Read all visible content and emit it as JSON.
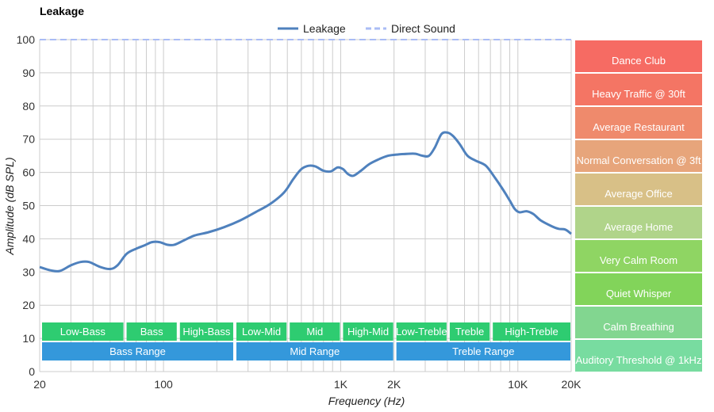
{
  "chart_data": {
    "type": "line",
    "title": "Leakage",
    "xlabel": "Frequency (Hz)",
    "ylabel": "Amplitude (dB SPL)",
    "xscale": "log",
    "xlim": [
      20,
      20000
    ],
    "ylim": [
      0,
      100
    ],
    "grid": true,
    "legend_position": "top-center",
    "x_ticks": [
      {
        "value": 20,
        "label": "20"
      },
      {
        "value": 100,
        "label": "100"
      },
      {
        "value": 1000,
        "label": "1K"
      },
      {
        "value": 2000,
        "label": "2K"
      },
      {
        "value": 10000,
        "label": "10K"
      },
      {
        "value": 20000,
        "label": "20K"
      }
    ],
    "y_ticks": [
      0,
      10,
      20,
      30,
      40,
      50,
      60,
      70,
      80,
      90,
      100
    ],
    "series": [
      {
        "name": "Leakage",
        "color": "#4f81bd",
        "style": "solid",
        "points": [
          [
            20,
            31.5
          ],
          [
            23,
            30.5
          ],
          [
            26,
            30.3
          ],
          [
            30,
            32.0
          ],
          [
            34,
            33.0
          ],
          [
            38,
            33.0
          ],
          [
            44,
            31.5
          ],
          [
            50,
            30.9
          ],
          [
            55,
            32.0
          ],
          [
            62,
            35.5
          ],
          [
            70,
            37.0
          ],
          [
            78,
            38.0
          ],
          [
            86,
            39.0
          ],
          [
            95,
            39.0
          ],
          [
            105,
            38.2
          ],
          [
            115,
            38.2
          ],
          [
            130,
            39.5
          ],
          [
            150,
            41.0
          ],
          [
            180,
            42.0
          ],
          [
            220,
            43.5
          ],
          [
            270,
            45.5
          ],
          [
            330,
            48.0
          ],
          [
            400,
            50.5
          ],
          [
            480,
            54.0
          ],
          [
            540,
            58.0
          ],
          [
            600,
            61.0
          ],
          [
            660,
            62.0
          ],
          [
            720,
            61.8
          ],
          [
            800,
            60.5
          ],
          [
            880,
            60.3
          ],
          [
            960,
            61.5
          ],
          [
            1030,
            61.0
          ],
          [
            1100,
            59.5
          ],
          [
            1180,
            59.0
          ],
          [
            1300,
            60.5
          ],
          [
            1450,
            62.5
          ],
          [
            1650,
            64.0
          ],
          [
            1850,
            65.0
          ],
          [
            2100,
            65.4
          ],
          [
            2400,
            65.6
          ],
          [
            2650,
            65.6
          ],
          [
            2900,
            65.0
          ],
          [
            3150,
            65.0
          ],
          [
            3400,
            67.5
          ],
          [
            3700,
            71.5
          ],
          [
            4000,
            72.0
          ],
          [
            4300,
            71.0
          ],
          [
            4700,
            68.5
          ],
          [
            5200,
            65.0
          ],
          [
            5800,
            63.5
          ],
          [
            6600,
            62.0
          ],
          [
            7400,
            58.5
          ],
          [
            8200,
            55.0
          ],
          [
            9000,
            51.5
          ],
          [
            9600,
            49.0
          ],
          [
            10200,
            48.0
          ],
          [
            11200,
            48.3
          ],
          [
            12200,
            47.5
          ],
          [
            13500,
            45.5
          ],
          [
            15500,
            43.8
          ],
          [
            17000,
            43.0
          ],
          [
            18500,
            42.8
          ],
          [
            20000,
            41.5
          ]
        ]
      },
      {
        "name": "Direct Sound",
        "color": "#aabcf5",
        "style": "dashed",
        "points": [
          [
            20,
            100
          ],
          [
            20000,
            100
          ]
        ]
      }
    ],
    "frequency_bands": {
      "narrow": [
        {
          "label": "Low-Bass",
          "from": 20,
          "to": 60,
          "color": "#2ecc71"
        },
        {
          "label": "Bass",
          "from": 60,
          "to": 120,
          "color": "#2ecc71"
        },
        {
          "label": "High-Bass",
          "from": 120,
          "to": 250,
          "color": "#2ecc71"
        },
        {
          "label": "Low-Mid",
          "from": 250,
          "to": 500,
          "color": "#2ecc71"
        },
        {
          "label": "Mid",
          "from": 500,
          "to": 1000,
          "color": "#2ecc71"
        },
        {
          "label": "High-Mid",
          "from": 1000,
          "to": 2000,
          "color": "#2ecc71"
        },
        {
          "label": "Low-Treble",
          "from": 2000,
          "to": 4000,
          "color": "#2ecc71"
        },
        {
          "label": "Treble",
          "from": 4000,
          "to": 7000,
          "color": "#2ecc71"
        },
        {
          "label": "High-Treble",
          "from": 7000,
          "to": 20000,
          "color": "#2ecc71"
        }
      ],
      "wide": [
        {
          "label": "Bass Range",
          "from": 20,
          "to": 250,
          "color": "#3498db"
        },
        {
          "label": "Mid Range",
          "from": 250,
          "to": 2000,
          "color": "#3498db"
        },
        {
          "label": "Treble Range",
          "from": 2000,
          "to": 20000,
          "color": "#3498db"
        }
      ]
    },
    "reference_levels": [
      {
        "label": "Dance Club",
        "color": "#f66b63"
      },
      {
        "label": "Heavy Traffic @ 30ft",
        "color": "#f47564"
      },
      {
        "label": "Average Restaurant",
        "color": "#ef8a6c"
      },
      {
        "label": "Normal Conversation @ 3ft",
        "color": "#e7a57b"
      },
      {
        "label": "Average Office",
        "color": "#d8c087"
      },
      {
        "label": "Average Home",
        "color": "#b0d48a"
      },
      {
        "label": "Very Calm Room",
        "color": "#8fd563"
      },
      {
        "label": "Quiet Whisper",
        "color": "#82d45a"
      },
      {
        "label": "Calm Breathing",
        "color": "#82d690"
      },
      {
        "label": "Auditory Threshold @ 1kHz",
        "color": "#78dca0"
      }
    ]
  }
}
